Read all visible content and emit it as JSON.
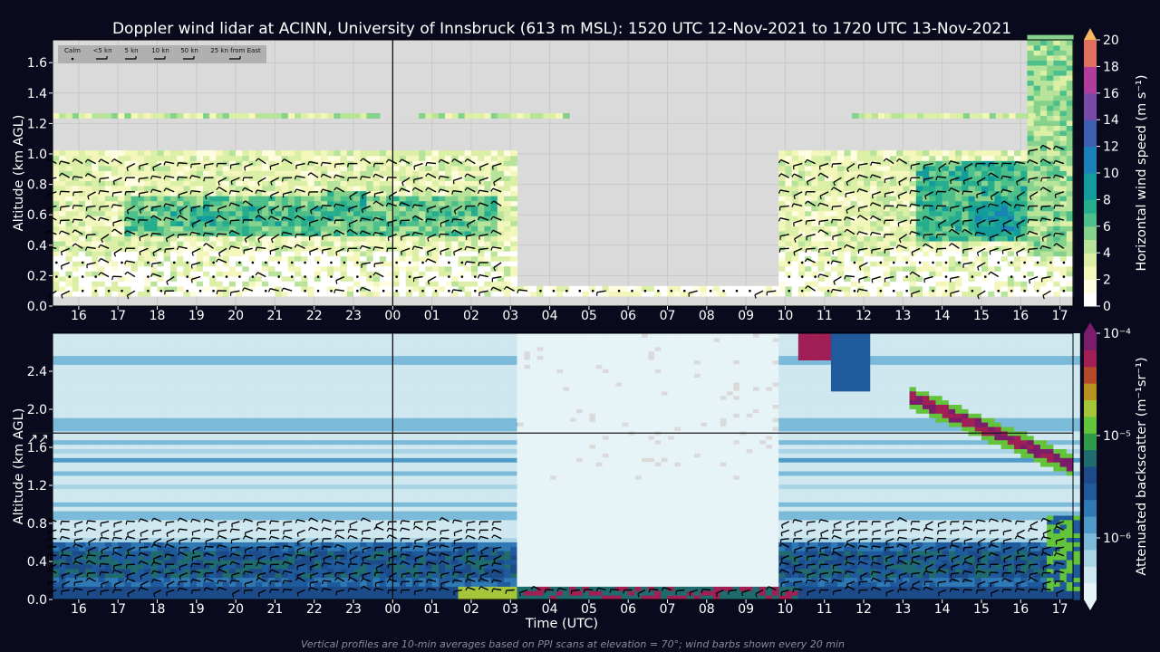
{
  "page": {
    "title": "Doppler wind lidar at ACINN, University of Innsbruck (613 m MSL): 1520 UTC 12-Nov-2021 to 1720 UTC 13-Nov-2021",
    "footnote": "Vertical profiles are 10-min averages based on PPI scans at elevation = 70°; wind barbs shown every 20 min",
    "colors": {
      "background": "#0a0a1e",
      "panel_bg": "#dadada",
      "text": "#ffffff"
    }
  },
  "chart_data": [
    {
      "type": "heatmap",
      "id": "wind_speed",
      "title": "",
      "xlabel": "",
      "ylabel": "Altitude (km AGL)",
      "x_start_utc": "15:20",
      "x_end_utc": "17:20 (+1 day)",
      "x_ticks": [
        "16",
        "17",
        "18",
        "19",
        "20",
        "21",
        "22",
        "23",
        "00",
        "01",
        "02",
        "03",
        "04",
        "05",
        "06",
        "07",
        "08",
        "09",
        "10",
        "11",
        "12",
        "13",
        "14",
        "15",
        "16",
        "17"
      ],
      "x_tick_hours": [
        16,
        17,
        18,
        19,
        20,
        21,
        22,
        23,
        24,
        25,
        26,
        27,
        28,
        29,
        30,
        31,
        32,
        33,
        34,
        35,
        36,
        37,
        38,
        39,
        40,
        41
      ],
      "ylim": [
        0,
        1.75
      ],
      "y_ticks": [
        "0.0",
        "0.2",
        "0.4",
        "0.6",
        "0.8",
        "1.0",
        "1.2",
        "1.4",
        "1.6"
      ],
      "y_tick_values": [
        0,
        0.2,
        0.4,
        0.6,
        0.8,
        1.0,
        1.2,
        1.4,
        1.6
      ],
      "colorbar": {
        "label": "Horizontal wind speed (m s⁻¹)",
        "min": 0,
        "max": 20,
        "ticks": [
          "0",
          "2",
          "4",
          "6",
          "8",
          "10",
          "12",
          "14",
          "16",
          "18",
          "20"
        ],
        "tick_values": [
          0,
          2,
          4,
          6,
          8,
          10,
          12,
          14,
          16,
          18,
          20
        ],
        "extend": "max"
      },
      "barb_legend": [
        "Calm",
        "<5 kn",
        "5 kn",
        "10 kn",
        "50 kn",
        "25 kn from East"
      ],
      "midnight_marker_hour": 24,
      "data_blocks": [
        {
          "x": [
            15.33,
            27.0
          ],
          "y": [
            0.05,
            1.0
          ],
          "speed": 3
        },
        {
          "x": [
            17.0,
            26.5
          ],
          "y": [
            0.45,
            0.7
          ],
          "speed": 6
        },
        {
          "x": [
            18.0,
            22.0
          ],
          "y": [
            0.5,
            0.65
          ],
          "speed": 7
        },
        {
          "x": [
            22.3,
            23.3
          ],
          "y": [
            0.55,
            0.75
          ],
          "speed": 7
        },
        {
          "x": [
            27.0,
            33.8
          ],
          "y": [
            0.05,
            0.12
          ],
          "speed": 2
        },
        {
          "x": [
            33.8,
            41.3
          ],
          "y": [
            0.05,
            1.0
          ],
          "speed": 3
        },
        {
          "x": [
            37.2,
            40.0
          ],
          "y": [
            0.4,
            0.95
          ],
          "speed": 7
        },
        {
          "x": [
            38.8,
            39.8
          ],
          "y": [
            0.45,
            0.65
          ],
          "speed": 9
        },
        {
          "x": [
            40.1,
            41.2
          ],
          "y": [
            0.3,
            1.75
          ],
          "speed": 5
        }
      ],
      "cloud_band": {
        "y": 1.25,
        "speed": 4
      }
    },
    {
      "type": "heatmap",
      "id": "backscatter",
      "title": "",
      "xlabel": "Time (UTC)",
      "ylabel": "Altitude (km AGL)",
      "ylim": [
        0,
        2.8
      ],
      "y_ticks": [
        "0.0",
        "0.4",
        "0.8",
        "1.2",
        "1.6",
        "2.0",
        "2.4"
      ],
      "y_tick_values": [
        0,
        0.4,
        0.8,
        1.2,
        1.6,
        2.0,
        2.4
      ],
      "x_ticks": [
        "16",
        "17",
        "18",
        "19",
        "20",
        "21",
        "22",
        "23",
        "00",
        "01",
        "02",
        "03",
        "04",
        "05",
        "06",
        "07",
        "08",
        "09",
        "10",
        "11",
        "12",
        "13",
        "14",
        "15",
        "16",
        "17"
      ],
      "colorbar": {
        "label": "Attenuated backscatter (m⁻¹sr⁻¹)",
        "scale": "log",
        "ticks": [
          "10⁻⁶",
          "10⁻⁵",
          "10⁻⁴"
        ],
        "tick_values": [
          1e-06,
          1e-05,
          0.0001
        ],
        "extend": "both"
      },
      "reference_line_km": 1.75,
      "reference_marker": "↗↗",
      "midnight_marker_hour": 24,
      "cloud_layer": {
        "hours": [
          37.0,
          41.3
        ],
        "y": [
          2.15,
          1.4
        ],
        "backscatter": 0.0001
      }
    }
  ]
}
